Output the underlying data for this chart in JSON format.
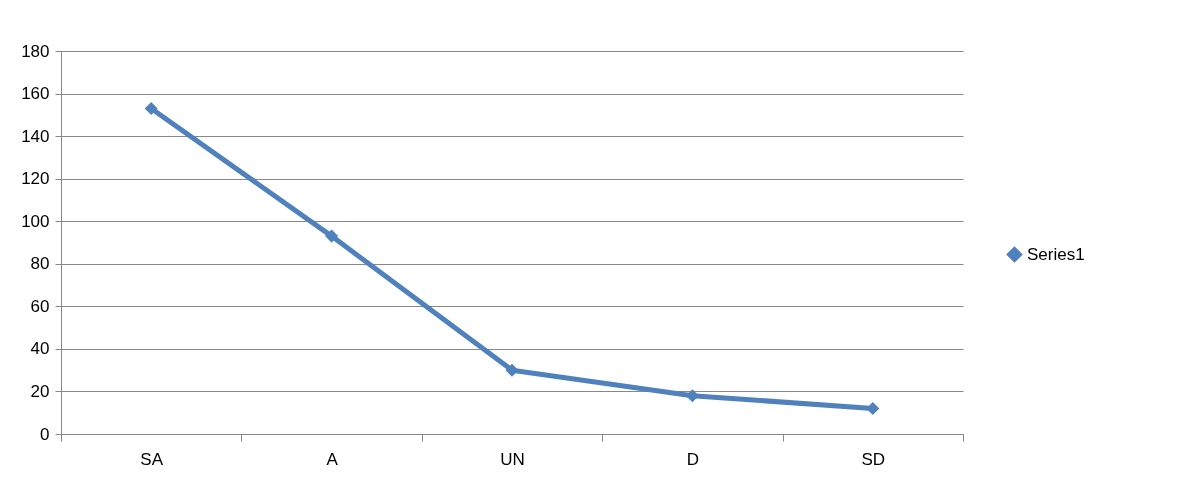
{
  "chart_data": {
    "type": "line",
    "categories": [
      "SA",
      "A",
      "UN",
      "D",
      "SD"
    ],
    "series": [
      {
        "name": "Series1",
        "color": "#4f81bd",
        "values": [
          153,
          93,
          30,
          18,
          12
        ]
      }
    ],
    "ylim": [
      0,
      180
    ],
    "yticks": [
      0,
      20,
      40,
      60,
      80,
      100,
      120,
      140,
      160,
      180
    ],
    "grid": "y",
    "legend": "right",
    "marker": "diamond",
    "line_style": "solid"
  }
}
